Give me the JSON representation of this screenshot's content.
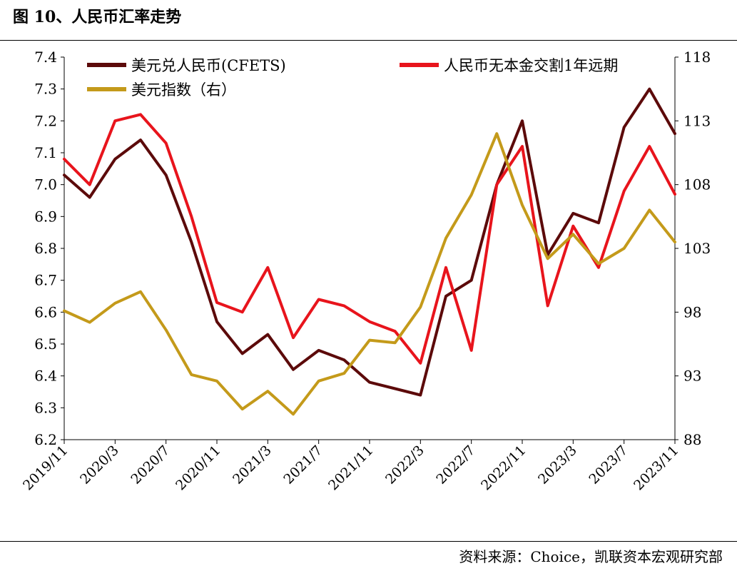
{
  "header": {
    "title": "图 10、人民币汇率走势"
  },
  "footer": {
    "source": "资料来源：Choice，凯联资本宏观研究部"
  },
  "chart_data": {
    "type": "line",
    "x_ticks": [
      "2019/11",
      "2020/3",
      "2020/7",
      "2020/11",
      "2021/3",
      "2021/7",
      "2021/11",
      "2022/3",
      "2022/7",
      "2022/11",
      "2023/3",
      "2023/7",
      "2023/11"
    ],
    "x": [
      "2019/11",
      "2020/1",
      "2020/3",
      "2020/5",
      "2020/7",
      "2020/9",
      "2020/11",
      "2021/1",
      "2021/3",
      "2021/5",
      "2021/7",
      "2021/9",
      "2021/11",
      "2022/1",
      "2022/3",
      "2022/5",
      "2022/7",
      "2022/9",
      "2022/11",
      "2023/1",
      "2023/3",
      "2023/5",
      "2023/7",
      "2023/9",
      "2023/11"
    ],
    "y_left": {
      "min": 6.2,
      "max": 7.4,
      "ticks": [
        "6.2",
        "6.3",
        "6.4",
        "6.5",
        "6.6",
        "6.7",
        "6.8",
        "6.9",
        "7.0",
        "7.1",
        "7.2",
        "7.3",
        "7.4"
      ]
    },
    "y_right": {
      "min": 88,
      "max": 118,
      "ticks": [
        "88",
        "93",
        "98",
        "103",
        "108",
        "113",
        "118"
      ]
    },
    "legend": {
      "placement": "top"
    },
    "series": [
      {
        "name": "美元兑人民币(CFETS)",
        "axis": "left",
        "color": "#5c0a0a",
        "values": [
          7.03,
          6.96,
          7.08,
          7.14,
          7.03,
          6.82,
          6.57,
          6.47,
          6.53,
          6.42,
          6.48,
          6.45,
          6.38,
          6.36,
          6.34,
          6.65,
          6.7,
          7.0,
          7.2,
          6.78,
          6.91,
          6.88,
          7.18,
          7.3,
          7.16
        ]
      },
      {
        "name": "人民币无本金交割1年远期",
        "axis": "left",
        "color": "#e8141c",
        "values": [
          7.08,
          7.0,
          7.2,
          7.22,
          7.13,
          6.9,
          6.63,
          6.6,
          6.74,
          6.52,
          6.64,
          6.62,
          6.57,
          6.54,
          6.44,
          6.74,
          6.48,
          7.0,
          7.12,
          6.62,
          6.87,
          6.74,
          6.98,
          7.12,
          6.97
        ]
      },
      {
        "name": "美元指数（右）",
        "axis": "right",
        "color": "#c49a1a",
        "values": [
          98.1,
          97.2,
          98.7,
          99.6,
          96.6,
          93.1,
          92.6,
          90.4,
          91.8,
          90.0,
          92.6,
          93.2,
          95.8,
          95.6,
          98.4,
          103.8,
          107.2,
          112.0,
          106.4,
          102.2,
          104.1,
          101.8,
          103.0,
          106.0,
          103.5
        ]
      }
    ]
  }
}
